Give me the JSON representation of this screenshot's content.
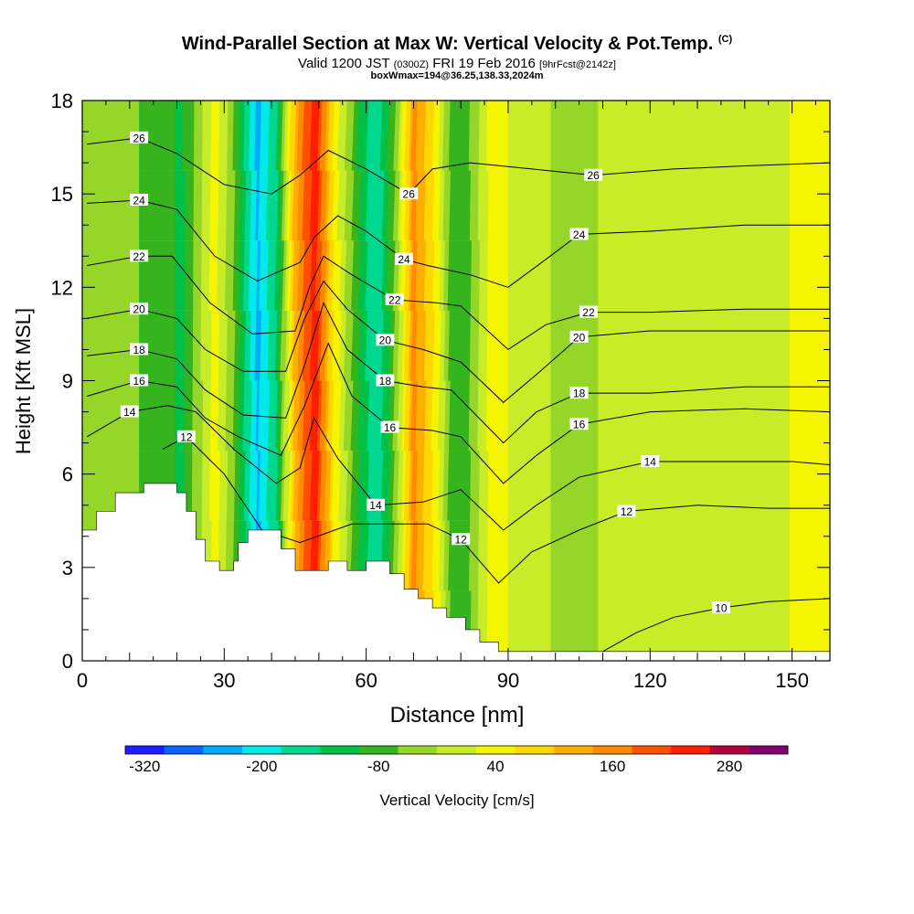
{
  "title": {
    "main": "Wind-Parallel Section at Max W: Vertical Velocity & Pot.Temp.",
    "copyright": "(C)",
    "valid_prefix": "Valid 1200 JST",
    "valid_utc": "(0300Z)",
    "valid_date": "FRI 19 Feb 2016",
    "forecast_info": "[9hrFcst@2142z]",
    "box_info": "boxWmax=194@36.25,138.33,2024m"
  },
  "chart_data": {
    "type": "heatmap",
    "xlabel": "Distance [nm]",
    "ylabel": "Height [Kft MSL]",
    "xlim": [
      0,
      158
    ],
    "ylim": [
      0,
      18
    ],
    "x_ticks": [
      0,
      30,
      60,
      90,
      120,
      150
    ],
    "y_ticks": [
      0,
      3,
      6,
      9,
      12,
      15,
      18
    ],
    "colorbar": {
      "label": "Vertical Velocity [cm/s]",
      "levels": [
        -340,
        -300,
        -260,
        -220,
        -180,
        -140,
        -100,
        -60,
        -20,
        20,
        60,
        100,
        140,
        180,
        220,
        260,
        300,
        340
      ],
      "tick_labels": [
        -320,
        -200,
        -80,
        40,
        160,
        280
      ],
      "colors": [
        "#1e1eff",
        "#0a64ff",
        "#00aaff",
        "#00eaea",
        "#00d890",
        "#00c048",
        "#36b41e",
        "#96d628",
        "#c8ec28",
        "#f5f500",
        "#ffd700",
        "#ffae00",
        "#ff8a00",
        "#ff5000",
        "#ff1e00",
        "#b4003c",
        "#82006e"
      ]
    },
    "w_bands": [
      {
        "x": 8,
        "w": -40
      },
      {
        "x": 16,
        "w": -80
      },
      {
        "x": 21,
        "w": -110
      },
      {
        "x": 28,
        "w": 40
      },
      {
        "x": 32,
        "w": -60
      },
      {
        "x": 37,
        "w": -230
      },
      {
        "x": 41,
        "w": -140
      },
      {
        "x": 45,
        "w": 120
      },
      {
        "x": 49,
        "w": 250
      },
      {
        "x": 53,
        "w": 60
      },
      {
        "x": 58,
        "w": -90
      },
      {
        "x": 62,
        "w": -180
      },
      {
        "x": 66,
        "w": -60
      },
      {
        "x": 70,
        "w": 150
      },
      {
        "x": 75,
        "w": 40
      },
      {
        "x": 78,
        "w": -80
      },
      {
        "x": 82,
        "w": -60
      },
      {
        "x": 87,
        "w": 50
      },
      {
        "x": 93,
        "w": -10
      },
      {
        "x": 105,
        "w": -30
      },
      {
        "x": 125,
        "w": 20
      },
      {
        "x": 140,
        "w": -20
      },
      {
        "x": 152,
        "w": 30
      }
    ],
    "theta_contours": [
      {
        "label": "10",
        "pts": [
          [
            110,
            0.3
          ],
          [
            117,
            0.9
          ],
          [
            125,
            1.4
          ],
          [
            135,
            1.7
          ],
          [
            145,
            1.9
          ],
          [
            158,
            2.0
          ]
        ]
      },
      {
        "label": "12",
        "pts": [
          [
            17,
            6.8
          ],
          [
            22,
            7.2
          ],
          [
            30,
            6.0
          ],
          [
            38,
            4.2
          ],
          [
            46,
            3.8
          ],
          [
            57,
            4.4
          ],
          [
            64,
            4.4
          ],
          [
            73,
            4.4
          ],
          [
            80,
            3.9
          ],
          [
            88,
            2.5
          ],
          [
            95,
            3.5
          ],
          [
            105,
            4.2
          ],
          [
            115,
            4.8
          ],
          [
            130,
            5.0
          ],
          [
            145,
            4.9
          ],
          [
            158,
            4.9
          ]
        ]
      },
      {
        "label": "14",
        "pts": [
          [
            1,
            7.2
          ],
          [
            10,
            8.0
          ],
          [
            18,
            8.2
          ],
          [
            24,
            8.0
          ],
          [
            32,
            6.8
          ],
          [
            41,
            5.7
          ],
          [
            46,
            6.2
          ],
          [
            49,
            7.8
          ],
          [
            54,
            6.5
          ],
          [
            62,
            5.0
          ],
          [
            72,
            5.1
          ],
          [
            80,
            5.5
          ],
          [
            89,
            4.2
          ],
          [
            96,
            5.0
          ],
          [
            105,
            5.9
          ],
          [
            120,
            6.4
          ],
          [
            135,
            6.4
          ],
          [
            150,
            6.4
          ],
          [
            158,
            6.3
          ]
        ]
      },
      {
        "label": "16",
        "pts": [
          [
            1,
            8.5
          ],
          [
            12,
            9.0
          ],
          [
            20,
            8.8
          ],
          [
            26,
            7.8
          ],
          [
            33,
            7.2
          ],
          [
            42,
            6.6
          ],
          [
            47,
            8.2
          ],
          [
            52,
            10.2
          ],
          [
            57,
            8.5
          ],
          [
            65,
            7.5
          ],
          [
            74,
            7.4
          ],
          [
            80,
            7.2
          ],
          [
            89,
            5.7
          ],
          [
            96,
            6.6
          ],
          [
            105,
            7.6
          ],
          [
            120,
            8.0
          ],
          [
            140,
            8.1
          ],
          [
            158,
            8.0
          ]
        ]
      },
      {
        "label": "18",
        "pts": [
          [
            1,
            9.8
          ],
          [
            12,
            10.0
          ],
          [
            20,
            9.7
          ],
          [
            26,
            8.7
          ],
          [
            34,
            7.9
          ],
          [
            43,
            7.8
          ],
          [
            47,
            9.5
          ],
          [
            51,
            11.5
          ],
          [
            56,
            10.0
          ],
          [
            64,
            9.0
          ],
          [
            72,
            8.8
          ],
          [
            78,
            8.7
          ],
          [
            89,
            7.0
          ],
          [
            96,
            8.0
          ],
          [
            105,
            8.6
          ],
          [
            120,
            8.6
          ],
          [
            140,
            8.8
          ],
          [
            158,
            8.8
          ]
        ]
      },
      {
        "label": "20",
        "pts": [
          [
            1,
            11.0
          ],
          [
            12,
            11.3
          ],
          [
            20,
            11.0
          ],
          [
            26,
            10.0
          ],
          [
            34,
            9.3
          ],
          [
            43,
            9.3
          ],
          [
            47,
            11.0
          ],
          [
            51,
            12.2
          ],
          [
            56,
            11.3
          ],
          [
            64,
            10.3
          ],
          [
            72,
            10.0
          ],
          [
            80,
            9.6
          ],
          [
            89,
            8.3
          ],
          [
            96,
            9.2
          ],
          [
            105,
            10.4
          ],
          [
            120,
            10.6
          ],
          [
            140,
            10.6
          ],
          [
            158,
            10.6
          ]
        ]
      },
      {
        "label": "22",
        "pts": [
          [
            1,
            12.7
          ],
          [
            12,
            13.0
          ],
          [
            19,
            13.0
          ],
          [
            27,
            11.5
          ],
          [
            36,
            10.5
          ],
          [
            45,
            10.6
          ],
          [
            48,
            12.0
          ],
          [
            51,
            13.0
          ],
          [
            57,
            12.4
          ],
          [
            66,
            11.6
          ],
          [
            75,
            11.5
          ],
          [
            80,
            11.4
          ],
          [
            90,
            10.0
          ],
          [
            98,
            10.8
          ],
          [
            107,
            11.2
          ],
          [
            120,
            11.2
          ],
          [
            140,
            11.3
          ],
          [
            158,
            11.3
          ]
        ]
      },
      {
        "label": "24",
        "pts": [
          [
            1,
            14.7
          ],
          [
            12,
            14.8
          ],
          [
            20,
            14.5
          ],
          [
            28,
            13.0
          ],
          [
            37,
            12.2
          ],
          [
            46,
            12.8
          ],
          [
            49,
            13.6
          ],
          [
            54,
            14.3
          ],
          [
            60,
            13.8
          ],
          [
            68,
            12.9
          ],
          [
            73,
            12.7
          ],
          [
            82,
            12.4
          ],
          [
            90,
            12.0
          ],
          [
            98,
            12.9
          ],
          [
            105,
            13.7
          ],
          [
            120,
            13.8
          ],
          [
            140,
            14.0
          ],
          [
            158,
            14.0
          ]
        ]
      },
      {
        "label": "26",
        "pts": [
          [
            1,
            16.6
          ],
          [
            12,
            16.8
          ],
          [
            20,
            16.3
          ],
          [
            30,
            15.3
          ],
          [
            40,
            15.0
          ],
          [
            46,
            15.6
          ],
          [
            52,
            16.4
          ],
          [
            60,
            15.8
          ],
          [
            69,
            15.0
          ],
          [
            74,
            15.8
          ],
          [
            82,
            16.0
          ],
          [
            95,
            15.8
          ],
          [
            108,
            15.6
          ],
          [
            125,
            15.8
          ],
          [
            140,
            15.9
          ],
          [
            158,
            16.0
          ]
        ]
      }
    ]
  }
}
